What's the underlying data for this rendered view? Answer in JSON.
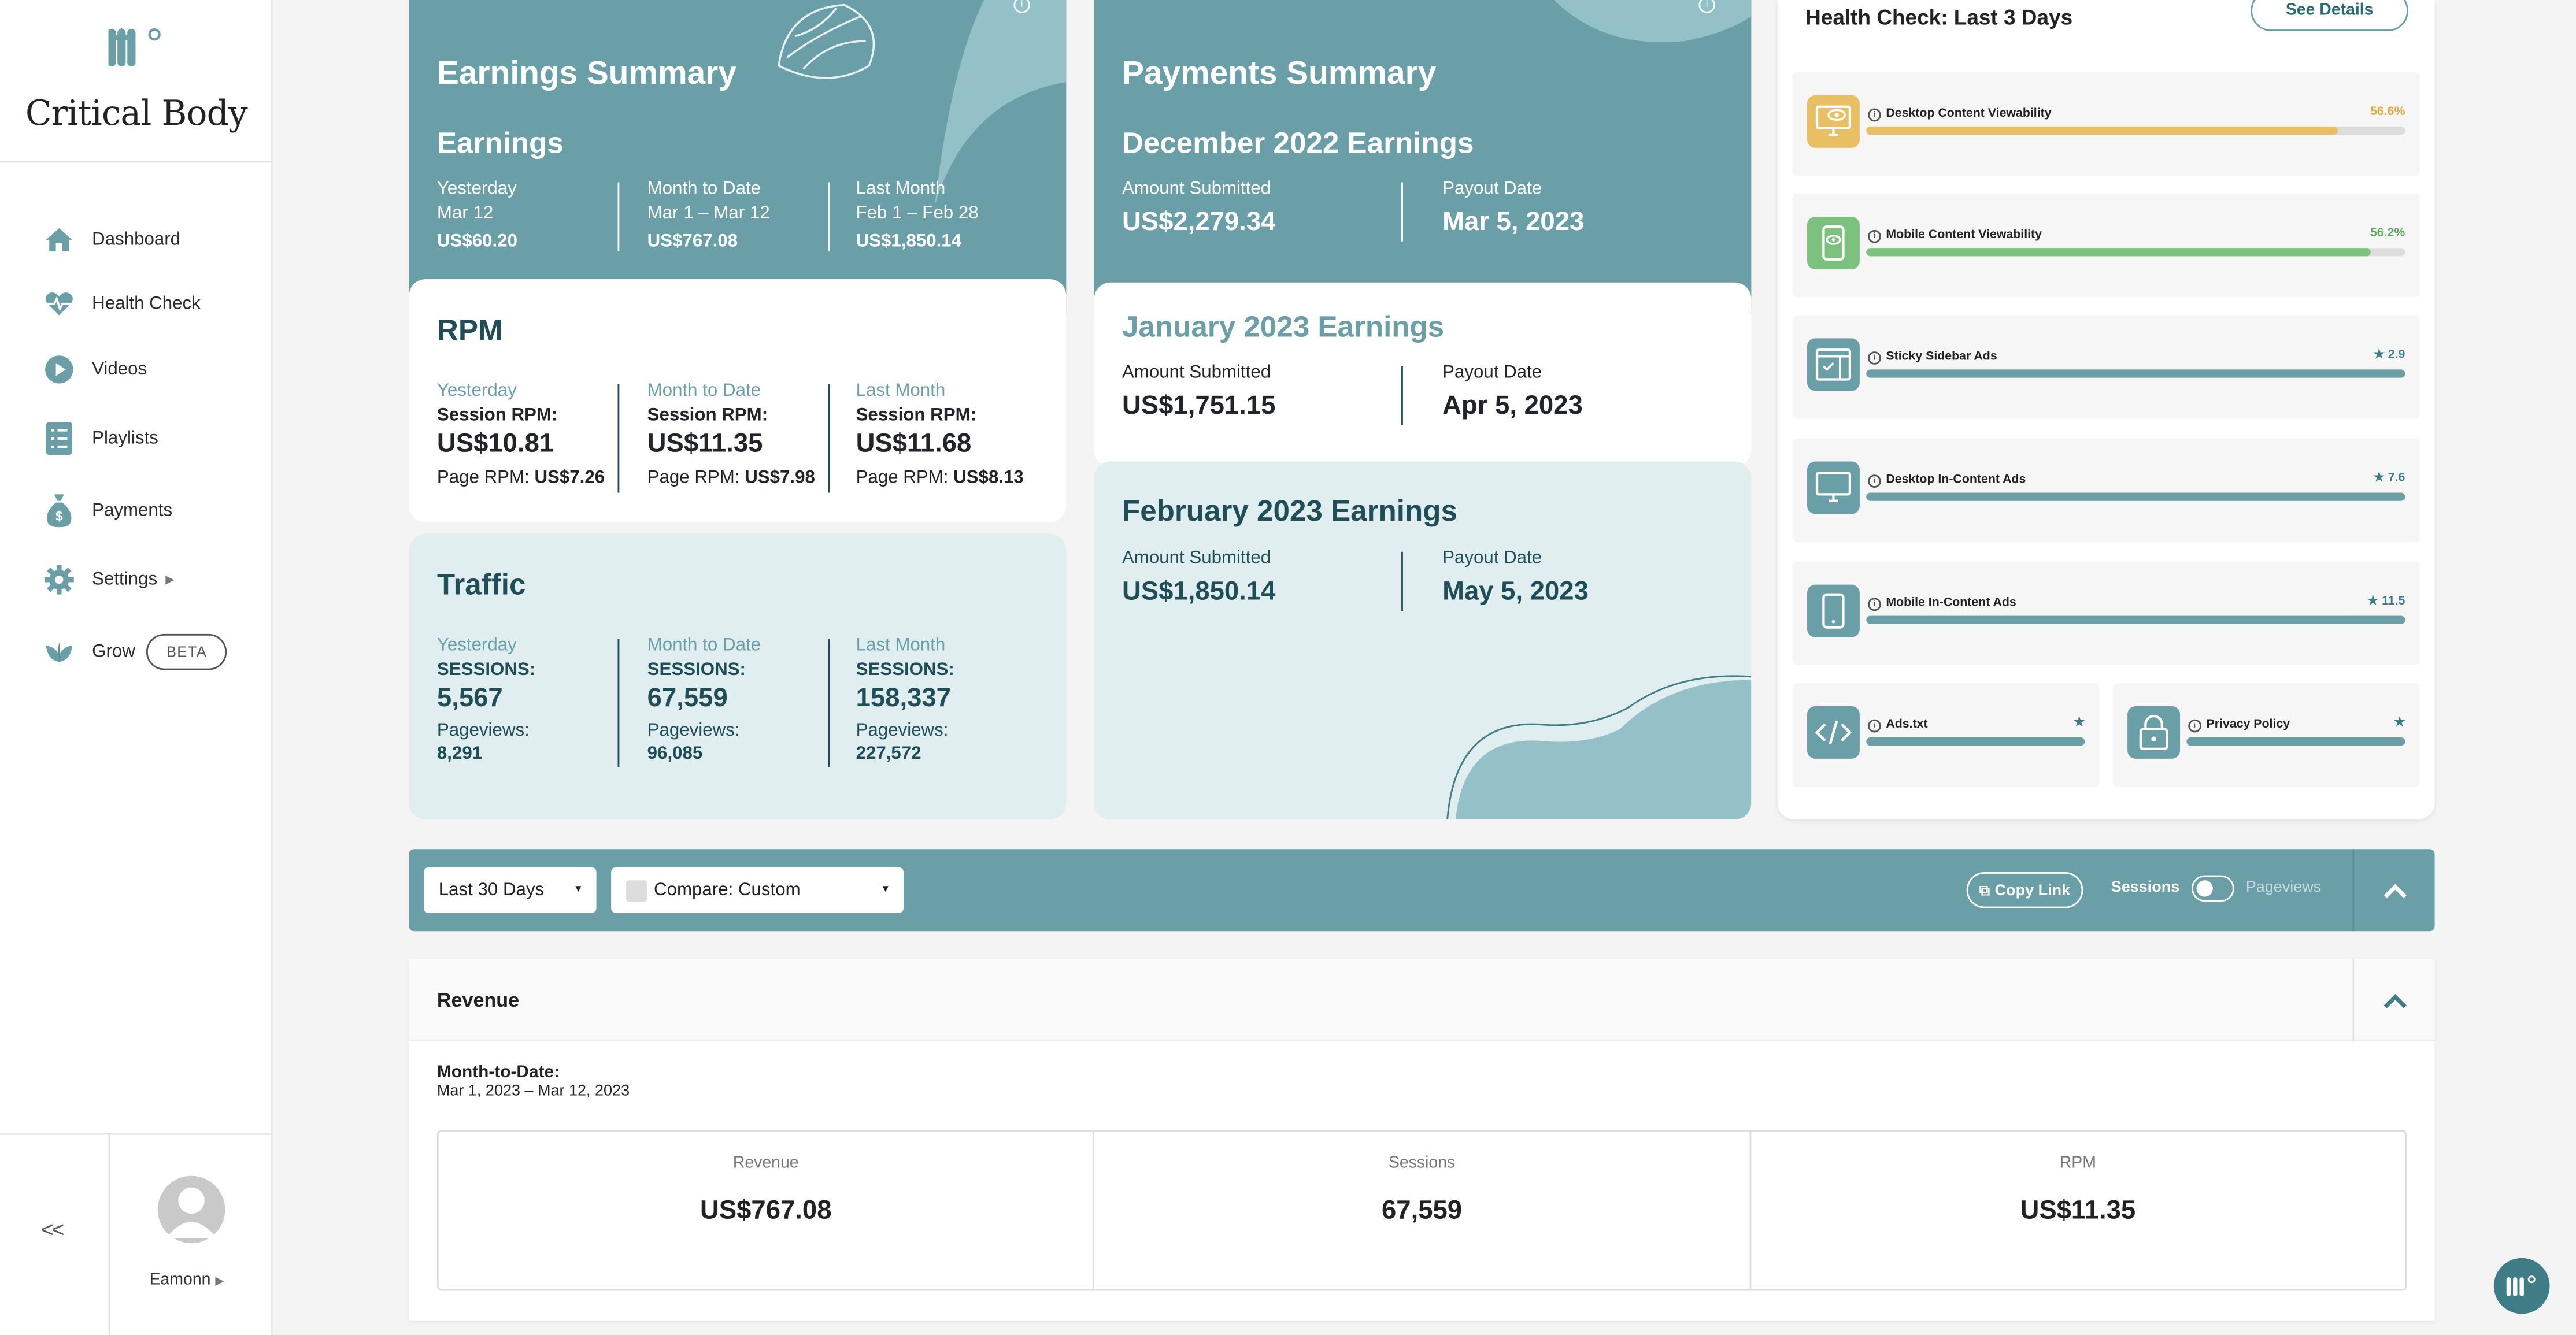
{
  "sidebar": {
    "brand": "Critical Body",
    "items": [
      {
        "label": "Dashboard"
      },
      {
        "label": "Health Check"
      },
      {
        "label": "Videos"
      },
      {
        "label": "Playlists"
      },
      {
        "label": "Payments"
      },
      {
        "label": "Settings"
      },
      {
        "label": "Grow",
        "badge": "BETA"
      }
    ],
    "user": "Eamonn",
    "collapse_label": "<<"
  },
  "earnings": {
    "title": "Earnings Summary",
    "subtitle": "Earnings",
    "cols": [
      {
        "period": "Yesterday",
        "range": "Mar 12",
        "value": "US$60.20"
      },
      {
        "period": "Month to Date",
        "range": "Mar 1 – Mar 12",
        "value": "US$767.08"
      },
      {
        "period": "Last Month",
        "range": "Feb 1 – Feb 28",
        "value": "US$1,850.14"
      }
    ]
  },
  "rpm": {
    "title": "RPM",
    "cols": [
      {
        "period": "Yesterday",
        "session_label": "Session RPM:",
        "session": "US$10.81",
        "page_label": "Page RPM:",
        "page": "US$7.26"
      },
      {
        "period": "Month to Date",
        "session_label": "Session RPM:",
        "session": "US$11.35",
        "page_label": "Page RPM:",
        "page": "US$7.98"
      },
      {
        "period": "Last Month",
        "session_label": "Session RPM:",
        "session": "US$11.68",
        "page_label": "Page RPM:",
        "page": "US$8.13"
      }
    ]
  },
  "traffic": {
    "title": "Traffic",
    "cols": [
      {
        "period": "Yesterday",
        "sessions_label": "SESSIONS:",
        "sessions": "5,567",
        "pv_label": "Pageviews:",
        "pv": "8,291"
      },
      {
        "period": "Month to Date",
        "sessions_label": "SESSIONS:",
        "sessions": "67,559",
        "pv_label": "Pageviews:",
        "pv": "96,085"
      },
      {
        "period": "Last Month",
        "sessions_label": "SESSIONS:",
        "sessions": "158,337",
        "pv_label": "Pageviews:",
        "pv": "227,572"
      }
    ]
  },
  "payments": {
    "title": "Payments Summary",
    "amount_label": "Amount Submitted",
    "payout_label": "Payout Date",
    "blocks": [
      {
        "title": "December 2022 Earnings",
        "amount": "US$2,279.34",
        "date": "Mar 5, 2023"
      },
      {
        "title": "January 2023 Earnings",
        "amount": "US$1,751.15",
        "date": "Apr 5, 2023"
      },
      {
        "title": "February 2023 Earnings",
        "amount": "US$1,850.14",
        "date": "May 5, 2023"
      }
    ]
  },
  "health": {
    "title": "Health Check: Last 3 Days",
    "see_details": "See Details",
    "rows": [
      {
        "label": "Desktop Content Viewability",
        "value": "56.6%",
        "level": 0.876,
        "color": "#e8c063",
        "icon": "desktop-eye-icon"
      },
      {
        "label": "Mobile Content Viewability",
        "value": "56.2%",
        "level": 0.936,
        "color": "#7cc27e",
        "icon": "mobile-eye-icon"
      },
      {
        "label": "Sticky Sidebar Ads",
        "value": "2.9",
        "level": 1,
        "color": "#6a9fa7",
        "icon": "sidebar-window-icon"
      },
      {
        "label": "Desktop In-Content Ads",
        "value": "7.6",
        "level": 1,
        "color": "#6a9fa7",
        "icon": "desktop-icon"
      },
      {
        "label": "Mobile In-Content Ads",
        "value": "11.5",
        "level": 1,
        "color": "#6a9fa7",
        "icon": "mobile-icon"
      }
    ],
    "small": [
      {
        "label": "Ads.txt",
        "icon": "code-icon"
      },
      {
        "label": "Privacy Policy",
        "icon": "lock-icon"
      }
    ]
  },
  "toolbar": {
    "range": "Last 30 Days",
    "compare": "Compare: Custom",
    "copy_link": "Copy Link",
    "sessions": "Sessions",
    "pageviews": "Pageviews"
  },
  "revenue": {
    "title": "Revenue",
    "mtd_label": "Month-to-Date:",
    "mtd_range": "Mar 1, 2023 – Mar 12, 2023",
    "kpis": [
      {
        "label": "Revenue",
        "value": "US$767.08"
      },
      {
        "label": "Sessions",
        "value": "67,559"
      },
      {
        "label": "RPM",
        "value": "US$11.35"
      }
    ]
  },
  "colors": {
    "teal": "#6a9fa7",
    "dark_teal": "#1f4e59",
    "pale": "#e0eef0"
  }
}
